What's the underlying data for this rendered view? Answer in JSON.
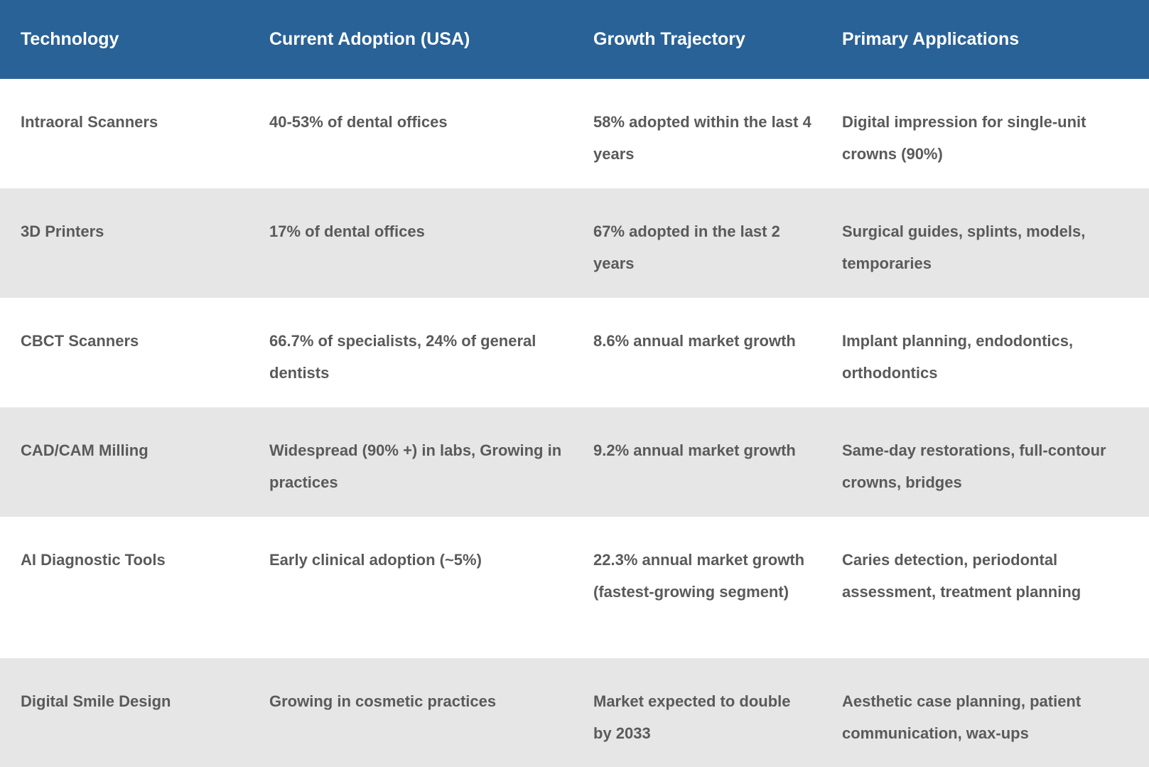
{
  "table": {
    "header": [
      "Technology",
      "Current Adoption (USA)",
      "Growth Trajectory",
      "Primary Applications"
    ],
    "rows": [
      [
        "Intraoral Scanners",
        "40-53% of dental offices",
        "58% adopted within the last 4 years",
        "Digital impression for single-unit crowns (90%)"
      ],
      [
        "3D Printers",
        "17% of dental offices",
        "67% adopted in the last 2 years",
        "Surgical guides, splints, models, temporaries"
      ],
      [
        "CBCT Scanners",
        "66.7% of specialists, 24% of general dentists",
        "8.6% annual market growth",
        "Implant planning, endodontics, orthodontics"
      ],
      [
        "CAD/CAM Milling",
        "Widespread (90% +) in labs, Growing in practices",
        "9.2% annual market growth",
        "Same-day restorations, full-contour crowns, bridges"
      ],
      [
        "AI Diagnostic Tools",
        "Early clinical adoption (~5%)",
        "22.3% annual market growth (fastest-growing segment)",
        "Caries detection, periodontal assessment, treatment planning"
      ],
      [
        "Digital Smile Design",
        "Growing in cosmetic practices",
        "Market expected to double by 2033",
        "Aesthetic case planning, patient communication, wax-ups"
      ]
    ]
  }
}
